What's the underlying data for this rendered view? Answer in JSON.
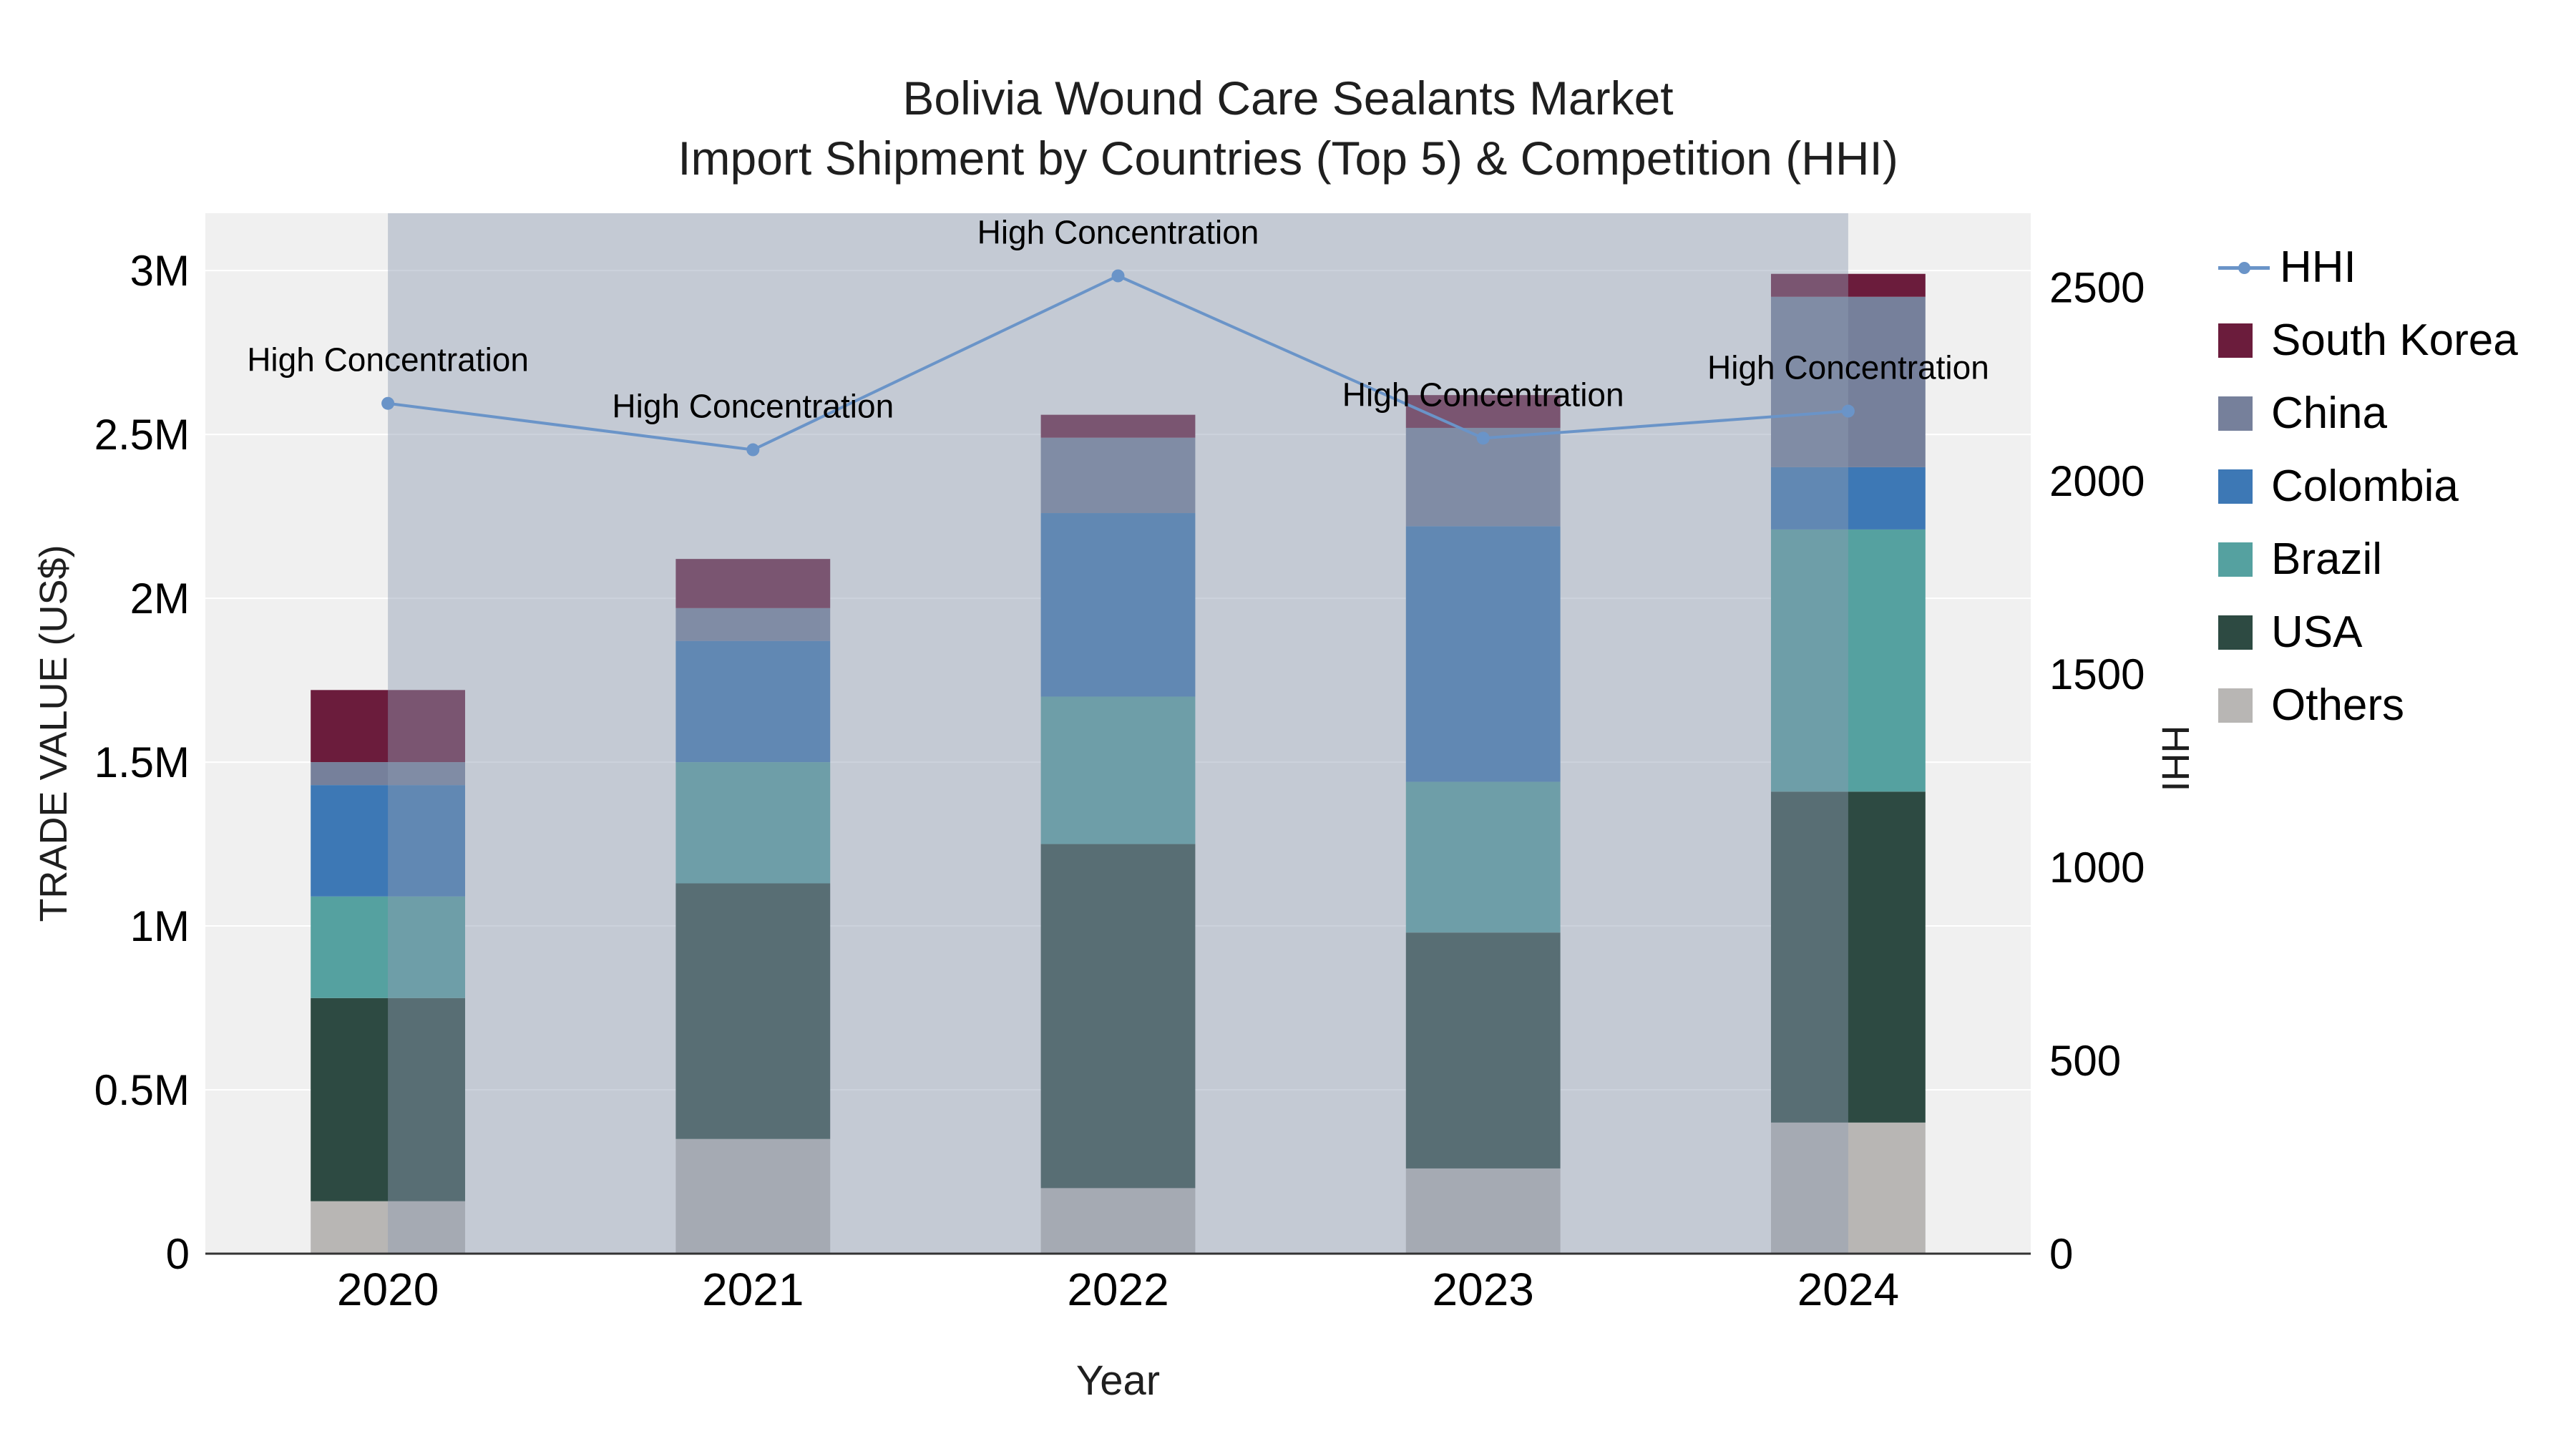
{
  "chart_data": {
    "type": "bar",
    "stacked": true,
    "title": "Bolivia Wound Care Sealants Market",
    "subtitle": "Import Shipment by Countries (Top 5) & Competition (HHI)",
    "xlabel": "Year",
    "ylabel": "TRADE VALUE (US$)",
    "y2label": "HHI",
    "categories": [
      "2020",
      "2021",
      "2022",
      "2023",
      "2024"
    ],
    "series": [
      {
        "name": "Others",
        "color": "#b8b6b4",
        "values": [
          160000,
          350000,
          200000,
          260000,
          400000
        ]
      },
      {
        "name": "USA",
        "color": "#2d4a42",
        "values": [
          620000,
          780000,
          1050000,
          720000,
          1010000
        ]
      },
      {
        "name": "Brazil",
        "color": "#55a1a0",
        "values": [
          310000,
          370000,
          450000,
          460000,
          800000
        ]
      },
      {
        "name": "Colombia",
        "color": "#3d78b5",
        "values": [
          340000,
          370000,
          560000,
          780000,
          190000
        ]
      },
      {
        "name": "China",
        "color": "#76809b",
        "values": [
          70000,
          100000,
          230000,
          300000,
          520000
        ]
      },
      {
        "name": "South Korea",
        "color": "#6b1c3c",
        "values": [
          220000,
          150000,
          70000,
          100000,
          70000
        ]
      }
    ],
    "totals": [
      1720000,
      2120000,
      2560000,
      2620000,
      2990000
    ],
    "line": {
      "name": "HHI",
      "color": "#6a94c8",
      "values": [
        2200,
        2080,
        2530,
        2110,
        2180
      ],
      "annotations": [
        "High Concentration",
        "High Concentration",
        "High Concentration",
        "High Concentration",
        "High Concentration"
      ]
    },
    "ylim": [
      0,
      3175000
    ],
    "y2lim": [
      0,
      2692
    ],
    "y_ticks": [
      {
        "label": "0",
        "value": 0
      },
      {
        "label": "0.5M",
        "value": 500000
      },
      {
        "label": "1M",
        "value": 1000000
      },
      {
        "label": "1.5M",
        "value": 1500000
      },
      {
        "label": "2M",
        "value": 2000000
      },
      {
        "label": "2.5M",
        "value": 2500000
      },
      {
        "label": "3M",
        "value": 3000000
      }
    ],
    "y2_ticks": [
      {
        "label": "0",
        "value": 0
      },
      {
        "label": "500",
        "value": 500
      },
      {
        "label": "1000",
        "value": 1000
      },
      {
        "label": "1500",
        "value": 1500
      },
      {
        "label": "2000",
        "value": 2000
      },
      {
        "label": "2500",
        "value": 2500
      }
    ],
    "legend": [
      {
        "label": "HHI",
        "type": "line",
        "color": "#6a94c8"
      },
      {
        "label": "South Korea",
        "type": "square",
        "color": "#6b1c3c"
      },
      {
        "label": "China",
        "type": "square",
        "color": "#76809b"
      },
      {
        "label": "Colombia",
        "type": "square",
        "color": "#3d78b5"
      },
      {
        "label": "Brazil",
        "type": "square",
        "color": "#55a1a0"
      },
      {
        "label": "USA",
        "type": "square",
        "color": "#2d4a42"
      },
      {
        "label": "Others",
        "type": "square",
        "color": "#b8b6b4"
      }
    ],
    "colors": {
      "plot_bg": "#f0f0f0",
      "grid": "#ffffff",
      "band": "#8e9bb2",
      "axis_line": "#333333",
      "annotation_text": "#000000"
    },
    "grid": true,
    "legend_position": "right"
  }
}
